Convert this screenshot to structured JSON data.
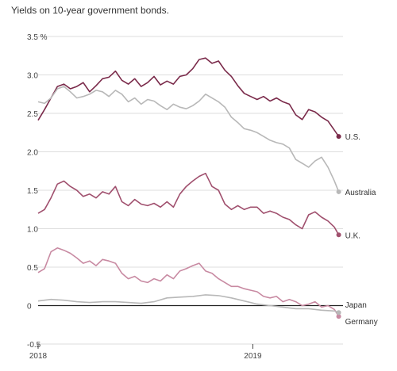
{
  "chart_data": {
    "type": "line",
    "title": "Yields on 10-year government bonds.",
    "xlabel": "",
    "ylabel": "",
    "unit_label": "%",
    "xlim": [
      2018.0,
      2019.42
    ],
    "ylim": [
      -0.5,
      3.5
    ],
    "y_ticks": [
      -0.5,
      0,
      0.5,
      1.0,
      1.5,
      2.0,
      2.5,
      3.0,
      3.5
    ],
    "y_tick_labels": [
      "-0.5",
      "0",
      "0.5",
      "1.0",
      "1.5",
      "2.0",
      "2.5",
      "3.0",
      "3.5"
    ],
    "x_ticks": [
      2018.0,
      2019.0
    ],
    "x_tick_labels": [
      "2018",
      "2019"
    ],
    "grid": true,
    "series": [
      {
        "name": "U.S.",
        "color": "#7a2a4a",
        "x": [
          2018.0,
          2018.03,
          2018.06,
          2018.09,
          2018.12,
          2018.15,
          2018.18,
          2018.21,
          2018.24,
          2018.27,
          2018.3,
          2018.33,
          2018.36,
          2018.39,
          2018.42,
          2018.45,
          2018.48,
          2018.51,
          2018.54,
          2018.57,
          2018.6,
          2018.63,
          2018.66,
          2018.69,
          2018.72,
          2018.75,
          2018.78,
          2018.81,
          2018.84,
          2018.87,
          2018.9,
          2018.93,
          2018.96,
          2018.99,
          2019.02,
          2019.05,
          2019.08,
          2019.11,
          2019.14,
          2019.17,
          2019.2,
          2019.23,
          2019.26,
          2019.29,
          2019.32,
          2019.35,
          2019.38,
          2019.4
        ],
        "values": [
          2.41,
          2.55,
          2.7,
          2.85,
          2.88,
          2.82,
          2.85,
          2.9,
          2.78,
          2.86,
          2.95,
          2.97,
          3.05,
          2.93,
          2.88,
          2.95,
          2.85,
          2.9,
          2.98,
          2.87,
          2.92,
          2.88,
          2.98,
          3.0,
          3.08,
          3.2,
          3.22,
          3.15,
          3.18,
          3.06,
          2.98,
          2.86,
          2.76,
          2.72,
          2.68,
          2.72,
          2.66,
          2.7,
          2.65,
          2.62,
          2.48,
          2.42,
          2.55,
          2.52,
          2.45,
          2.4,
          2.28,
          2.2
        ]
      },
      {
        "name": "Australia",
        "color": "#b8b8b8",
        "x": [
          2018.0,
          2018.03,
          2018.06,
          2018.09,
          2018.12,
          2018.15,
          2018.18,
          2018.21,
          2018.24,
          2018.27,
          2018.3,
          2018.33,
          2018.36,
          2018.39,
          2018.42,
          2018.45,
          2018.48,
          2018.51,
          2018.54,
          2018.57,
          2018.6,
          2018.63,
          2018.66,
          2018.69,
          2018.72,
          2018.75,
          2018.78,
          2018.81,
          2018.84,
          2018.87,
          2018.9,
          2018.93,
          2018.96,
          2018.99,
          2019.02,
          2019.05,
          2019.08,
          2019.11,
          2019.14,
          2019.17,
          2019.2,
          2019.23,
          2019.26,
          2019.29,
          2019.32,
          2019.35,
          2019.38,
          2019.4
        ],
        "values": [
          2.65,
          2.63,
          2.7,
          2.82,
          2.85,
          2.78,
          2.7,
          2.72,
          2.75,
          2.8,
          2.78,
          2.72,
          2.8,
          2.75,
          2.65,
          2.7,
          2.62,
          2.68,
          2.66,
          2.6,
          2.55,
          2.62,
          2.58,
          2.56,
          2.6,
          2.66,
          2.75,
          2.7,
          2.65,
          2.58,
          2.45,
          2.38,
          2.3,
          2.28,
          2.25,
          2.2,
          2.15,
          2.12,
          2.1,
          2.05,
          1.9,
          1.85,
          1.8,
          1.88,
          1.93,
          1.8,
          1.62,
          1.48
        ]
      },
      {
        "name": "U.K.",
        "color": "#a0506e",
        "x": [
          2018.0,
          2018.03,
          2018.06,
          2018.09,
          2018.12,
          2018.15,
          2018.18,
          2018.21,
          2018.24,
          2018.27,
          2018.3,
          2018.33,
          2018.36,
          2018.39,
          2018.42,
          2018.45,
          2018.48,
          2018.51,
          2018.54,
          2018.57,
          2018.6,
          2018.63,
          2018.66,
          2018.69,
          2018.72,
          2018.75,
          2018.78,
          2018.81,
          2018.84,
          2018.87,
          2018.9,
          2018.93,
          2018.96,
          2018.99,
          2019.02,
          2019.05,
          2019.08,
          2019.11,
          2019.14,
          2019.17,
          2019.2,
          2019.23,
          2019.26,
          2019.29,
          2019.32,
          2019.35,
          2019.38,
          2019.4
        ],
        "values": [
          1.2,
          1.25,
          1.4,
          1.58,
          1.62,
          1.55,
          1.5,
          1.42,
          1.45,
          1.4,
          1.48,
          1.45,
          1.55,
          1.35,
          1.3,
          1.38,
          1.32,
          1.3,
          1.33,
          1.28,
          1.35,
          1.28,
          1.45,
          1.55,
          1.62,
          1.68,
          1.72,
          1.55,
          1.5,
          1.32,
          1.25,
          1.3,
          1.25,
          1.28,
          1.28,
          1.2,
          1.23,
          1.2,
          1.15,
          1.12,
          1.05,
          1.0,
          1.18,
          1.22,
          1.15,
          1.1,
          1.02,
          0.92
        ]
      },
      {
        "name": "Germany",
        "color": "#c88aa2",
        "x": [
          2018.0,
          2018.03,
          2018.06,
          2018.09,
          2018.12,
          2018.15,
          2018.18,
          2018.21,
          2018.24,
          2018.27,
          2018.3,
          2018.33,
          2018.36,
          2018.39,
          2018.42,
          2018.45,
          2018.48,
          2018.51,
          2018.54,
          2018.57,
          2018.6,
          2018.63,
          2018.66,
          2018.69,
          2018.72,
          2018.75,
          2018.78,
          2018.81,
          2018.84,
          2018.87,
          2018.9,
          2018.93,
          2018.96,
          2018.99,
          2019.02,
          2019.05,
          2019.08,
          2019.11,
          2019.14,
          2019.17,
          2019.2,
          2019.23,
          2019.26,
          2019.29,
          2019.32,
          2019.35,
          2019.38,
          2019.4
        ],
        "values": [
          0.43,
          0.48,
          0.7,
          0.75,
          0.72,
          0.68,
          0.62,
          0.55,
          0.58,
          0.52,
          0.6,
          0.58,
          0.55,
          0.42,
          0.35,
          0.38,
          0.32,
          0.3,
          0.35,
          0.32,
          0.4,
          0.35,
          0.45,
          0.48,
          0.52,
          0.55,
          0.45,
          0.42,
          0.35,
          0.3,
          0.25,
          0.25,
          0.22,
          0.2,
          0.18,
          0.12,
          0.1,
          0.12,
          0.05,
          0.08,
          0.05,
          0.0,
          0.02,
          0.05,
          -0.02,
          0.0,
          -0.05,
          -0.14
        ]
      },
      {
        "name": "Japan",
        "color": "#b8b8b8",
        "x": [
          2018.0,
          2018.06,
          2018.12,
          2018.18,
          2018.24,
          2018.3,
          2018.36,
          2018.42,
          2018.48,
          2018.54,
          2018.6,
          2018.66,
          2018.72,
          2018.78,
          2018.84,
          2018.9,
          2018.96,
          2019.02,
          2019.08,
          2019.14,
          2019.2,
          2019.26,
          2019.32,
          2019.38,
          2019.4
        ],
        "values": [
          0.06,
          0.08,
          0.07,
          0.05,
          0.04,
          0.05,
          0.05,
          0.04,
          0.03,
          0.05,
          0.1,
          0.11,
          0.12,
          0.14,
          0.13,
          0.1,
          0.06,
          0.02,
          0.0,
          -0.02,
          -0.04,
          -0.04,
          -0.06,
          -0.07,
          -0.09
        ]
      }
    ]
  }
}
